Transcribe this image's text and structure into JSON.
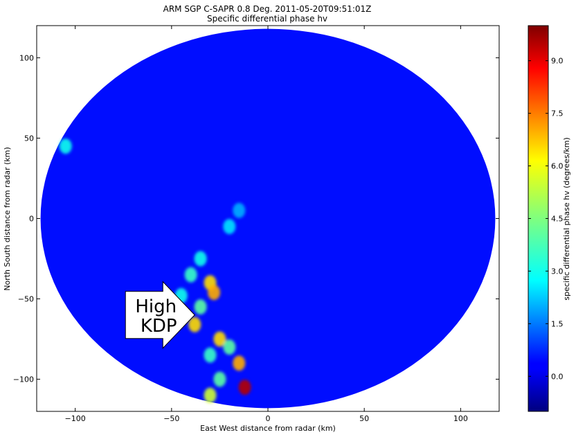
{
  "chart_data": {
    "type": "heatmap",
    "title": "ARM SGP C-SAPR 0.8 Deg. 2011-05-20T09:51:01Z",
    "subtitle": "Specific differential phase hv",
    "xlabel": "East West distance from radar (km)",
    "ylabel": "North South distance from radar (km)",
    "xlim": [
      -120,
      120
    ],
    "ylim": [
      -120,
      120
    ],
    "xticks": [
      -100,
      -50,
      0,
      50,
      100
    ],
    "yticks": [
      -100,
      -50,
      0,
      50,
      100
    ],
    "colorbar": {
      "label": "specific differential phase hv (degrees/km)",
      "range": [
        -1.0,
        10.0
      ],
      "ticks": [
        0.0,
        1.5,
        3.0,
        4.5,
        6.0,
        7.5,
        9.0
      ],
      "tick_labels": [
        "0.0",
        "1.5",
        "3.0",
        "4.5",
        "6.0",
        "7.5",
        "9.0"
      ],
      "colormap": "jet"
    },
    "radar_range_km": 118,
    "background_value": 0.5,
    "annotation": {
      "line1": "High",
      "line2": "KDP",
      "point_x": -38,
      "point_y": -60
    },
    "high_kdp_regions": [
      {
        "x": -20,
        "y": -5,
        "value": 2.5
      },
      {
        "x": -15,
        "y": 5,
        "value": 2.0
      },
      {
        "x": -35,
        "y": -25,
        "value": 3.0
      },
      {
        "x": -40,
        "y": -35,
        "value": 3.5
      },
      {
        "x": -30,
        "y": -40,
        "value": 6.5
      },
      {
        "x": -28,
        "y": -46,
        "value": 7.0
      },
      {
        "x": -45,
        "y": -48,
        "value": 3.0
      },
      {
        "x": -35,
        "y": -55,
        "value": 4.0
      },
      {
        "x": -38,
        "y": -66,
        "value": 6.5
      },
      {
        "x": -25,
        "y": -75,
        "value": 6.5
      },
      {
        "x": -20,
        "y": -80,
        "value": 4.0
      },
      {
        "x": -30,
        "y": -85,
        "value": 3.5
      },
      {
        "x": -15,
        "y": -90,
        "value": 7.0
      },
      {
        "x": -25,
        "y": -100,
        "value": 4.0
      },
      {
        "x": -12,
        "y": -105,
        "value": 9.5
      },
      {
        "x": -30,
        "y": -110,
        "value": 5.5
      },
      {
        "x": -105,
        "y": 45,
        "value": 3.0
      }
    ]
  }
}
